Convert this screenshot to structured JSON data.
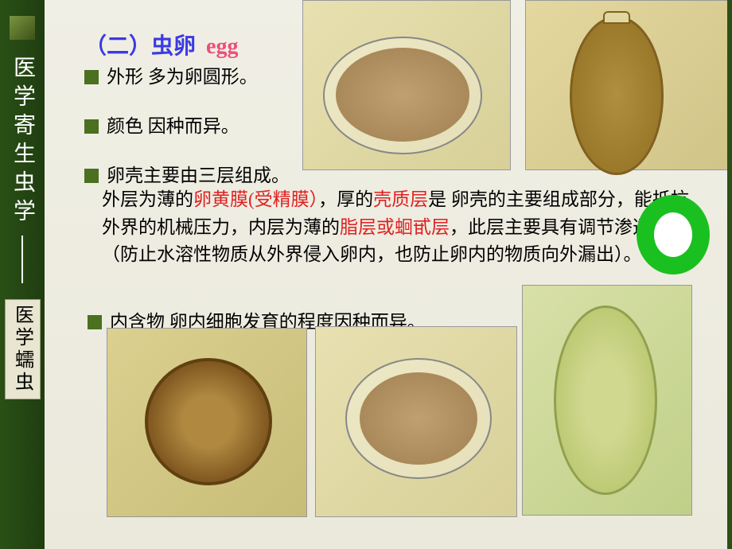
{
  "sidebar": {
    "main_text": "医学寄生虫学",
    "box_text": "医学蠕虫"
  },
  "title": {
    "part1": "（二）虫卵",
    "part2": "egg"
  },
  "bullets": {
    "b1": "外形  多为卵圆形。",
    "b2": "颜色  因种而异。",
    "b3": "卵壳主要由三层组成。",
    "b3_body_pre": "外层为薄的",
    "b3_hl1": "卵黄膜(受精膜）",
    "b3_mid1": "，厚的",
    "b3_hl2": "壳质层",
    "b3_mid2": "是 卵壳的主要组成部分，能抵抗外界的机械压力，内层为薄的",
    "b3_hl3": "脂层或蛔甙层",
    "b3_tail": "，此层主要具有调节渗透的功能（防止水溶性物质从外界侵入卵内，也防止卵内的物质向外漏出）。",
    "b4": "内含物  卵内细胞发育的程度因种而异。"
  },
  "colors": {
    "sidebar_bg": "#1f3d10",
    "bullet": "#4a7020",
    "title_blue": "#3a3ae6",
    "title_pink": "#ec4f7b",
    "highlight": "#e02020",
    "ring": "#1ac020"
  }
}
